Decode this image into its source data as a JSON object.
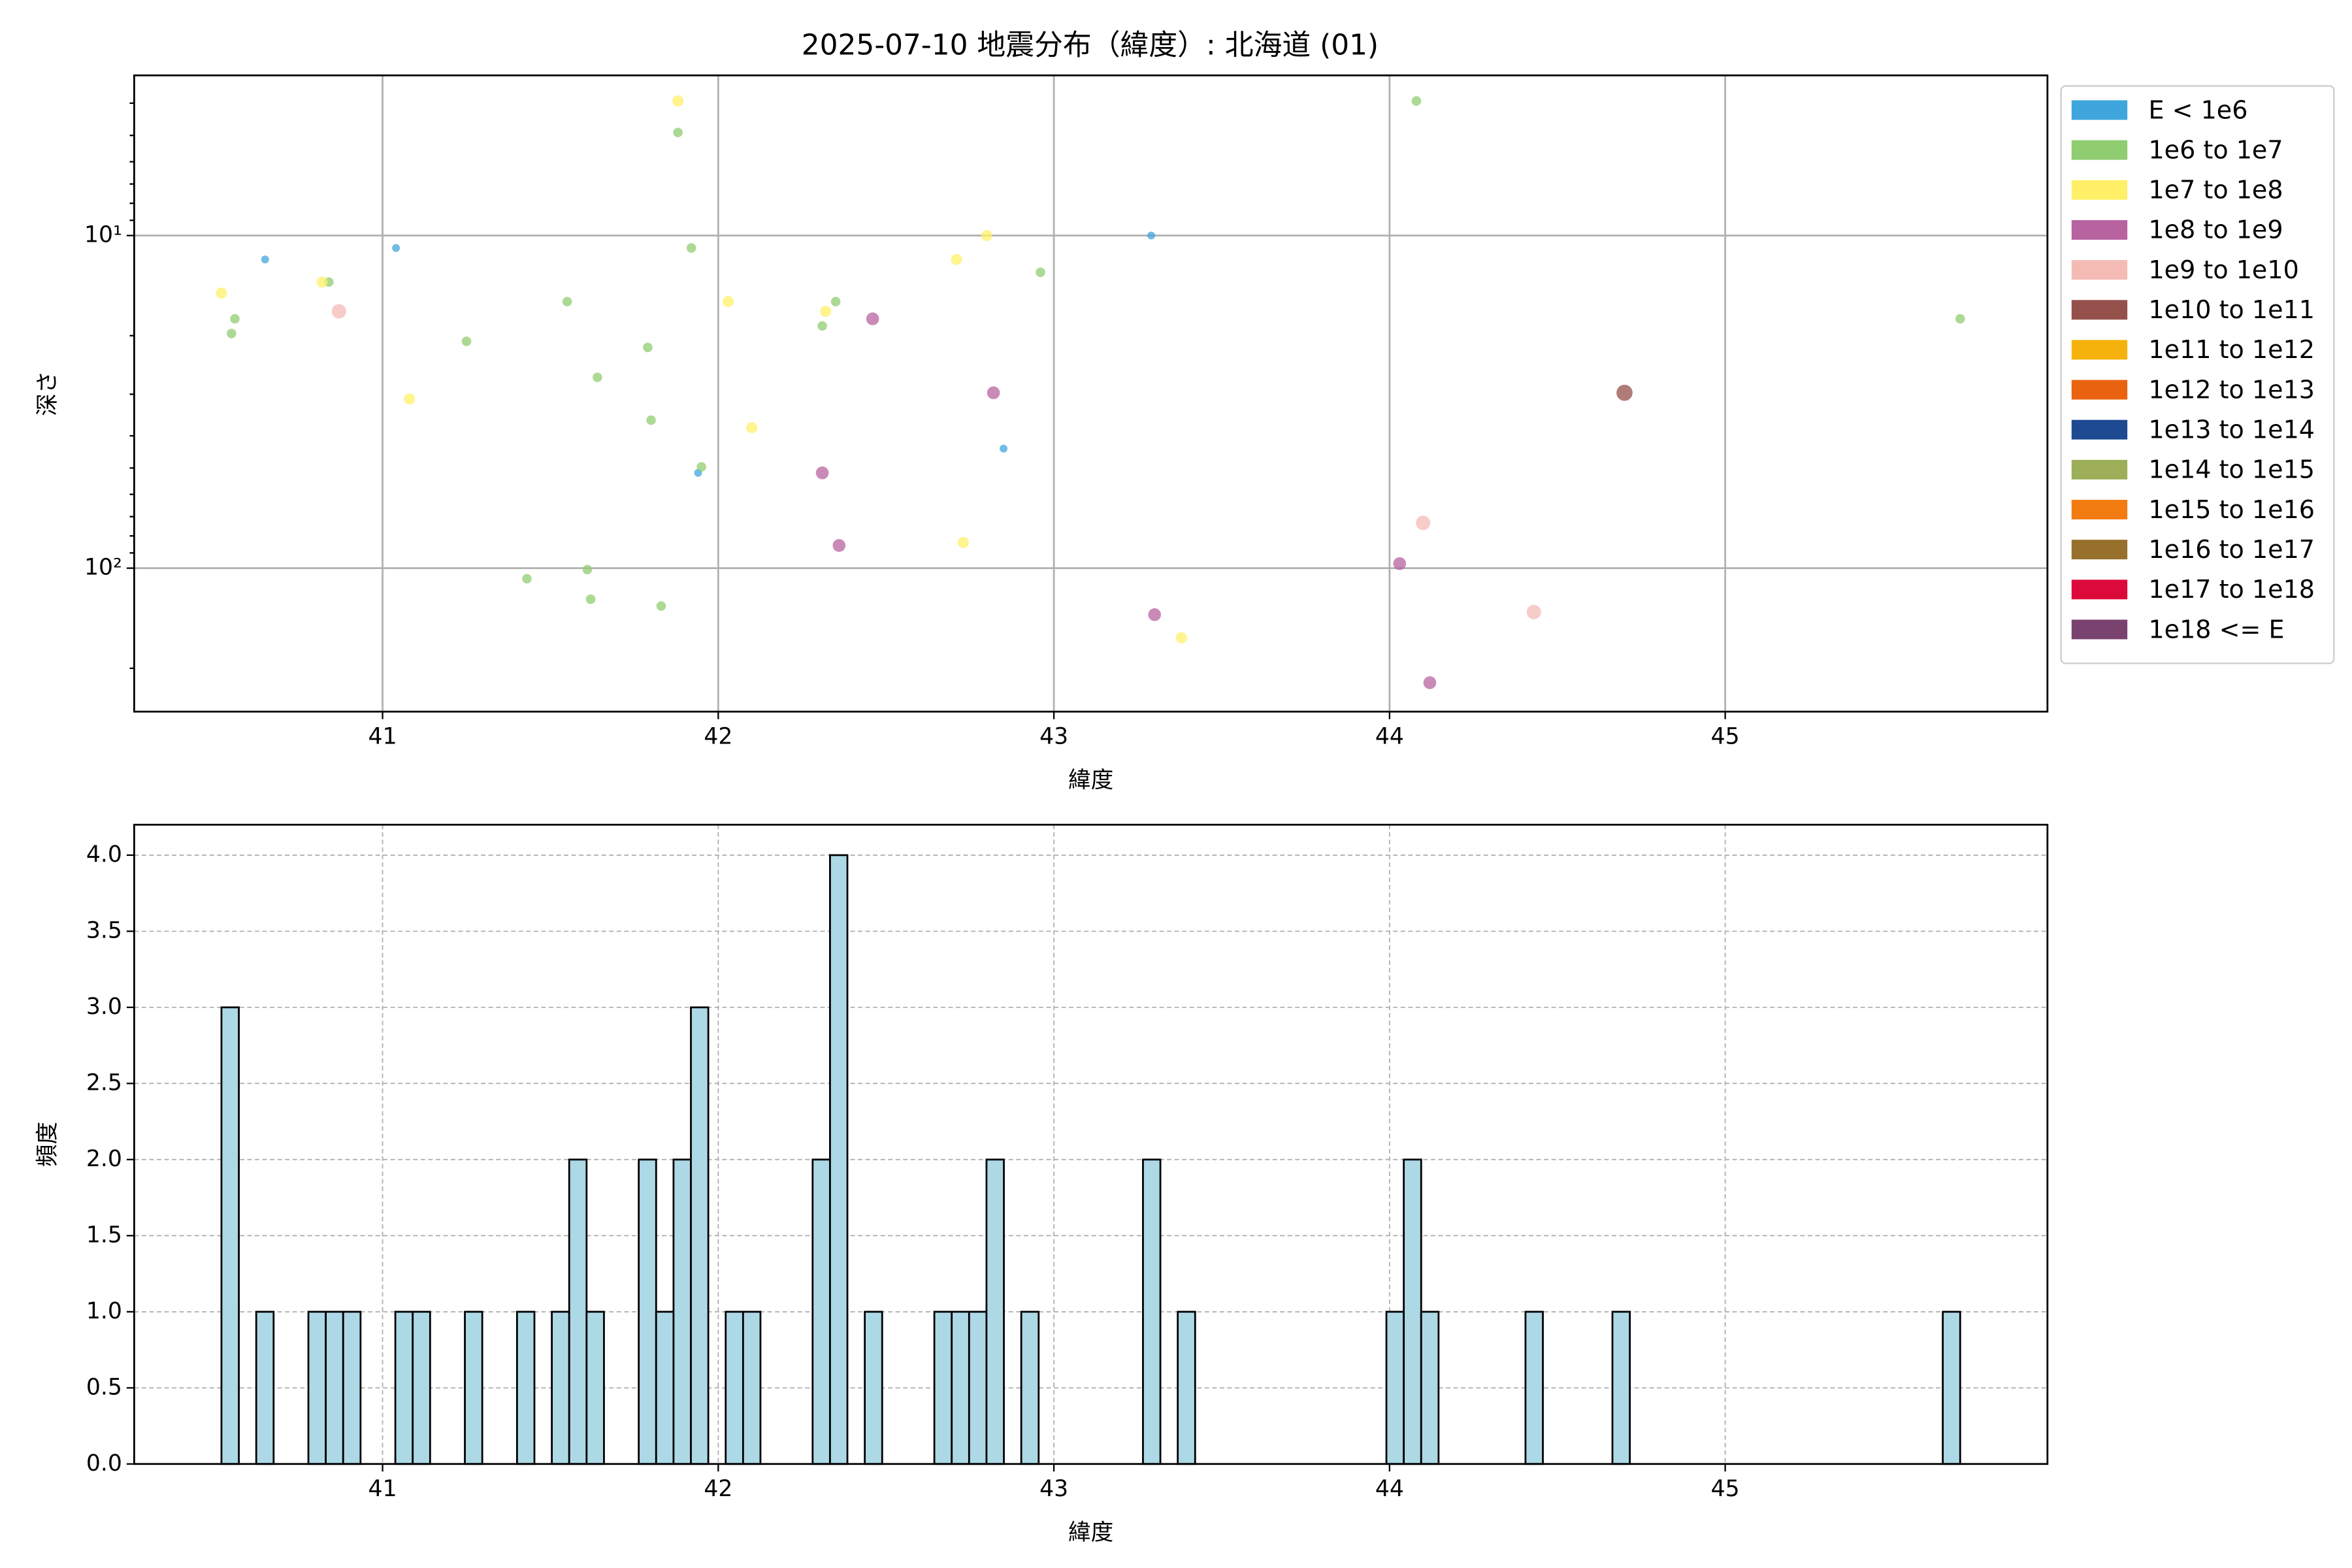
{
  "chart_data": [
    {
      "type": "scatter",
      "title": "2025-07-10 地震分布（緯度）: 北海道 (01)",
      "x_label": "緯度",
      "y_label": "深さ",
      "xlim": [
        40.26,
        45.96
      ],
      "xticks": [
        41,
        42,
        43,
        44,
        45
      ],
      "ylim": [
        3.3,
        270
      ],
      "y_log": true,
      "y_inverted": true,
      "yticks": [
        {
          "value": 10,
          "label": "10¹"
        },
        {
          "value": 100,
          "label": "10²"
        }
      ],
      "yminor_ticks": [
        4,
        5,
        6,
        7,
        8,
        9,
        20,
        30,
        40,
        50,
        60,
        70,
        80,
        90,
        200
      ],
      "grid": true,
      "legend": "outside right",
      "series": [
        {
          "name": "E < 1e6",
          "color": "#3fa6dd",
          "x": [
            40.65,
            41.04,
            41.94,
            42.85,
            43.29
          ],
          "values": [
            11.8,
            10.9,
            51.7,
            43.7,
            10
          ]
        },
        {
          "name": "1e6 to 1e7",
          "color": "#90cc70",
          "x": [
            40.56,
            40.55,
            40.84,
            41.25,
            41.55,
            41.64,
            41.79,
            41.8,
            41.88,
            41.92,
            41.95,
            41.43,
            41.61,
            41.62,
            41.83,
            42.31,
            42.35,
            42.96,
            44.08,
            45.7
          ],
          "values": [
            17.8,
            19.7,
            13.8,
            20.8,
            15.8,
            26.7,
            21.7,
            35.9,
            4.9,
            10.9,
            49.6,
            107.6,
            101,
            124,
            130,
            18.7,
            15.8,
            12.9,
            3.94,
            17.8
          ]
        },
        {
          "name": "1e7 to 1e8",
          "color": "#fff068",
          "x": [
            40.52,
            40.82,
            41.08,
            41.88,
            42.03,
            42.1,
            42.32,
            42.71,
            42.8,
            42.73,
            43.38
          ],
          "values": [
            14.9,
            13.8,
            31,
            3.94,
            15.8,
            37.8,
            16.9,
            11.8,
            10,
            83.7,
            162
          ]
        },
        {
          "name": "1e8 to 1e9",
          "color": "#b8639f",
          "x": [
            42.46,
            42.82,
            42.31,
            42.36,
            43.3,
            44.03,
            44.12
          ],
          "values": [
            17.8,
            29.7,
            51.7,
            85.5,
            138,
            96.9,
            221
          ]
        },
        {
          "name": "1e9 to 1e10",
          "color": "#f4bbb5",
          "x": [
            40.87,
            44.1,
            44.43
          ],
          "values": [
            16.9,
            73.1,
            135.5
          ]
        },
        {
          "name": "1e10 to 1e11",
          "color": "#96504c",
          "x": [
            44.7
          ],
          "values": [
            29.7
          ]
        },
        {
          "name": "1e11 to 1e12",
          "color": "#f6b20c",
          "x": [],
          "values": []
        },
        {
          "name": "1e12 to 1e13",
          "color": "#ea6310",
          "x": [],
          "values": []
        },
        {
          "name": "1e13 to 1e14",
          "color": "#1d4a91",
          "x": [],
          "values": []
        },
        {
          "name": "1e14 to 1e15",
          "color": "#9cae57",
          "x": [],
          "values": []
        },
        {
          "name": "1e15 to 1e16",
          "color": "#f27c12",
          "x": [],
          "values": []
        },
        {
          "name": "1e16 to 1e17",
          "color": "#97702c",
          "x": [],
          "values": []
        },
        {
          "name": "1e17 to 1e18",
          "color": "#dc0a3a",
          "x": [],
          "values": []
        },
        {
          "name": "1e18 <= E",
          "color": "#7a426f",
          "x": [],
          "values": []
        }
      ]
    },
    {
      "type": "histogram",
      "x_label": "緯度",
      "y_label": "頻度",
      "color": "#add8e6",
      "edge_color": "#000000",
      "xlim": [
        40.26,
        45.96
      ],
      "xticks": [
        41,
        42,
        43,
        44,
        45
      ],
      "ylim": [
        0,
        4.2
      ],
      "yticks": [
        {
          "value": 0,
          "label": "0.0"
        },
        0.5,
        {
          "value": 1,
          "label": "1.0"
        },
        1.5,
        {
          "value": 2,
          "label": "2.0"
        },
        2.5,
        {
          "value": 3,
          "label": "3.0"
        },
        3.5,
        {
          "value": 4,
          "label": "4.0"
        }
      ],
      "grid": true,
      "bins": [
        40.52,
        40.5718,
        40.6236,
        40.6754,
        40.7272,
        40.779,
        40.8308,
        40.8826,
        40.9344,
        40.9862,
        41.038,
        41.0898,
        41.1416,
        41.1934,
        41.2452,
        41.297,
        41.3488,
        41.4006,
        41.4524,
        41.5042,
        41.556,
        41.6078,
        41.6596,
        41.7114,
        41.7632,
        41.815,
        41.8668,
        41.9186,
        41.9704,
        42.0222,
        42.074,
        42.1258,
        42.1776,
        42.2294,
        42.2812,
        42.333,
        42.3848,
        42.4366,
        42.4884,
        42.5402,
        42.592,
        42.6438,
        42.6956,
        42.7474,
        42.7992,
        42.851,
        42.9028,
        42.9546,
        43.0064,
        43.0582,
        43.11,
        43.1618,
        43.2136,
        43.2654,
        43.3172,
        43.369,
        43.4208,
        43.4726,
        43.5244,
        43.5762,
        43.628,
        43.6798,
        43.7316,
        43.7834,
        43.8352,
        43.887,
        43.9388,
        43.9906,
        44.0424,
        44.0942,
        44.146,
        44.1978,
        44.2496,
        44.3014,
        44.3532,
        44.405,
        44.4568,
        44.5086,
        44.5604,
        44.6122,
        44.664,
        44.7158,
        44.7676,
        44.8194,
        44.8712,
        44.923,
        44.9748,
        45.0266,
        45.0784,
        45.1302,
        45.182,
        45.2338,
        45.2856,
        45.3374,
        45.3892,
        45.441,
        45.4928,
        45.5446,
        45.5964,
        45.6482,
        45.7
      ],
      "values": [
        3,
        0,
        1,
        0,
        0,
        1,
        1,
        1,
        0,
        0,
        1,
        1,
        0,
        0,
        1,
        0,
        0,
        1,
        0,
        1,
        2,
        1,
        0,
        0,
        2,
        1,
        2,
        3,
        0,
        1,
        1,
        0,
        0,
        0,
        2,
        4,
        0,
        1,
        0,
        0,
        0,
        1,
        1,
        1,
        2,
        0,
        1,
        0,
        0,
        0,
        0,
        0,
        0,
        2,
        0,
        1,
        0,
        0,
        0,
        0,
        0,
        0,
        0,
        0,
        0,
        0,
        0,
        1,
        2,
        1,
        0,
        0,
        0,
        0,
        0,
        1,
        0,
        0,
        0,
        0,
        1,
        0,
        0,
        0,
        0,
        0,
        0,
        0,
        0,
        0,
        0,
        0,
        0,
        0,
        0,
        0,
        0,
        0,
        0,
        1
      ]
    }
  ]
}
